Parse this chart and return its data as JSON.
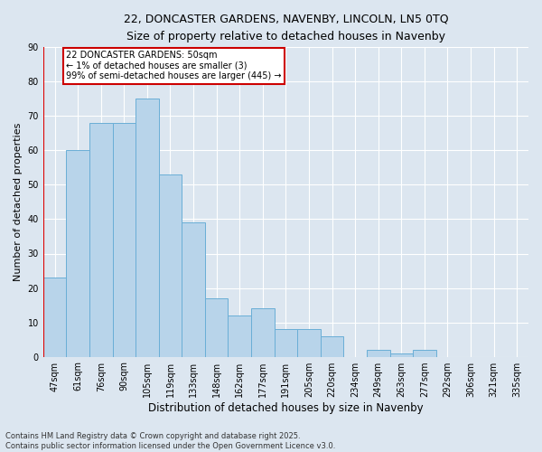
{
  "title1": "22, DONCASTER GARDENS, NAVENBY, LINCOLN, LN5 0TQ",
  "title2": "Size of property relative to detached houses in Navenby",
  "xlabel": "Distribution of detached houses by size in Navenby",
  "ylabel": "Number of detached properties",
  "categories": [
    "47sqm",
    "61sqm",
    "76sqm",
    "90sqm",
    "105sqm",
    "119sqm",
    "133sqm",
    "148sqm",
    "162sqm",
    "177sqm",
    "191sqm",
    "205sqm",
    "220sqm",
    "234sqm",
    "249sqm",
    "263sqm",
    "277sqm",
    "292sqm",
    "306sqm",
    "321sqm",
    "335sqm"
  ],
  "values": [
    23,
    60,
    68,
    68,
    75,
    53,
    39,
    17,
    12,
    14,
    8,
    8,
    6,
    0,
    2,
    1,
    2,
    0,
    0,
    0,
    0
  ],
  "bar_color": "#b8d4ea",
  "bar_edge_color": "#6aaed6",
  "annotation_text": "22 DONCASTER GARDENS: 50sqm\n← 1% of detached houses are smaller (3)\n99% of semi-detached houses are larger (445) →",
  "annotation_box_facecolor": "#ffffff",
  "annotation_box_edgecolor": "#cc0000",
  "ylim": [
    0,
    90
  ],
  "yticks": [
    0,
    10,
    20,
    30,
    40,
    50,
    60,
    70,
    80,
    90
  ],
  "fig_bg_color": "#dce6f0",
  "plot_bg_color": "#dce6f0",
  "grid_color": "#ffffff",
  "red_line_color": "#dd0000",
  "footnote": "Contains HM Land Registry data © Crown copyright and database right 2025.\nContains public sector information licensed under the Open Government Licence v3.0.",
  "title1_fontsize": 9,
  "title2_fontsize": 8.5,
  "ylabel_fontsize": 8,
  "xlabel_fontsize": 8.5,
  "tick_fontsize": 7,
  "annotation_fontsize": 7,
  "footnote_fontsize": 6
}
